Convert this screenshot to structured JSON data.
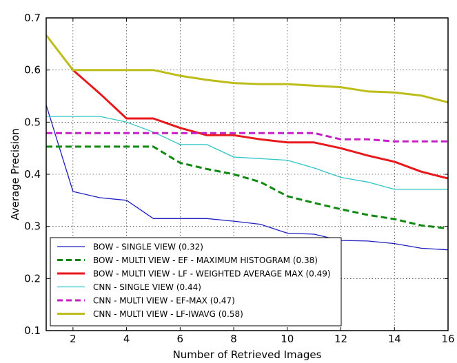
{
  "chart_data": {
    "type": "line",
    "title": "",
    "xlabel": "Number of Retrieved Images",
    "ylabel": "Average Precision",
    "xlim": [
      1,
      16
    ],
    "ylim": [
      0.1,
      0.7
    ],
    "xticks": [
      2,
      4,
      6,
      8,
      10,
      12,
      14,
      16
    ],
    "yticks": [
      0.1,
      0.2,
      0.3,
      0.4,
      0.5,
      0.6,
      0.7
    ],
    "xtick_labels": [
      "2",
      "4",
      "6",
      "8",
      "10",
      "12",
      "14",
      "16"
    ],
    "ytick_labels": [
      "0.1",
      "0.2",
      "0.3",
      "0.4",
      "0.5",
      "0.6",
      "0.7"
    ],
    "grid": true,
    "legend_position": "bottom-left",
    "x": [
      1,
      2,
      3,
      4,
      5,
      6,
      7,
      8,
      9,
      10,
      11,
      12,
      13,
      14,
      15,
      16
    ],
    "series": [
      {
        "name": "BOW - SINGLE VIEW (0.32)",
        "color": "#1f1fbf",
        "dash": "solid",
        "width": 1.3,
        "values": [
          0.533,
          0.367,
          0.355,
          0.35,
          0.315,
          0.315,
          0.315,
          0.31,
          0.304,
          0.287,
          0.285,
          0.273,
          0.272,
          0.267,
          0.258,
          0.255
        ]
      },
      {
        "name": "BOW - MULTI VIEW - EF - MAXIMUM HISTOGRAM (0.38)",
        "color": "#118811",
        "dash": "dashed",
        "width": 3,
        "values": [
          0.453,
          0.453,
          0.453,
          0.453,
          0.453,
          0.422,
          0.41,
          0.4,
          0.385,
          0.358,
          0.345,
          0.333,
          0.322,
          0.314,
          0.302,
          0.296
        ]
      },
      {
        "name": "BOW - MULTI VIEW - LF - WEIGHTED AVERAGE MAX (0.49)",
        "color": "#e8191c",
        "dash": "solid",
        "width": 3,
        "values": [
          null,
          0.6,
          0.555,
          0.507,
          0.507,
          0.489,
          0.475,
          0.475,
          0.467,
          0.461,
          0.461,
          0.45,
          0.436,
          0.424,
          0.405,
          0.392
        ]
      },
      {
        "name": "CNN - SINGLE VIEW (0.44)",
        "color": "#2fc4c4",
        "dash": "solid",
        "width": 1.3,
        "values": [
          0.511,
          0.511,
          0.511,
          0.5,
          0.481,
          0.457,
          0.457,
          0.433,
          0.43,
          0.427,
          0.412,
          0.394,
          0.385,
          0.371,
          0.371,
          0.371
        ]
      },
      {
        "name": "CNN - MULTI VIEW - EF-MAX (0.47)",
        "color": "#c41fc4",
        "dash": "dashed",
        "width": 3,
        "values": [
          0.479,
          0.479,
          0.479,
          0.479,
          0.479,
          0.479,
          0.479,
          0.479,
          0.479,
          0.479,
          0.479,
          0.467,
          0.467,
          0.463,
          0.463,
          0.463
        ]
      },
      {
        "name": "CNN - MULTI VIEW - LF-IWAVG (0.58)",
        "color": "#bdbd1a",
        "dash": "solid",
        "width": 3,
        "values": [
          0.667,
          0.6,
          0.6,
          0.6,
          0.6,
          0.589,
          0.581,
          0.575,
          0.573,
          0.573,
          0.57,
          0.567,
          0.559,
          0.557,
          0.551,
          0.538
        ]
      }
    ]
  }
}
